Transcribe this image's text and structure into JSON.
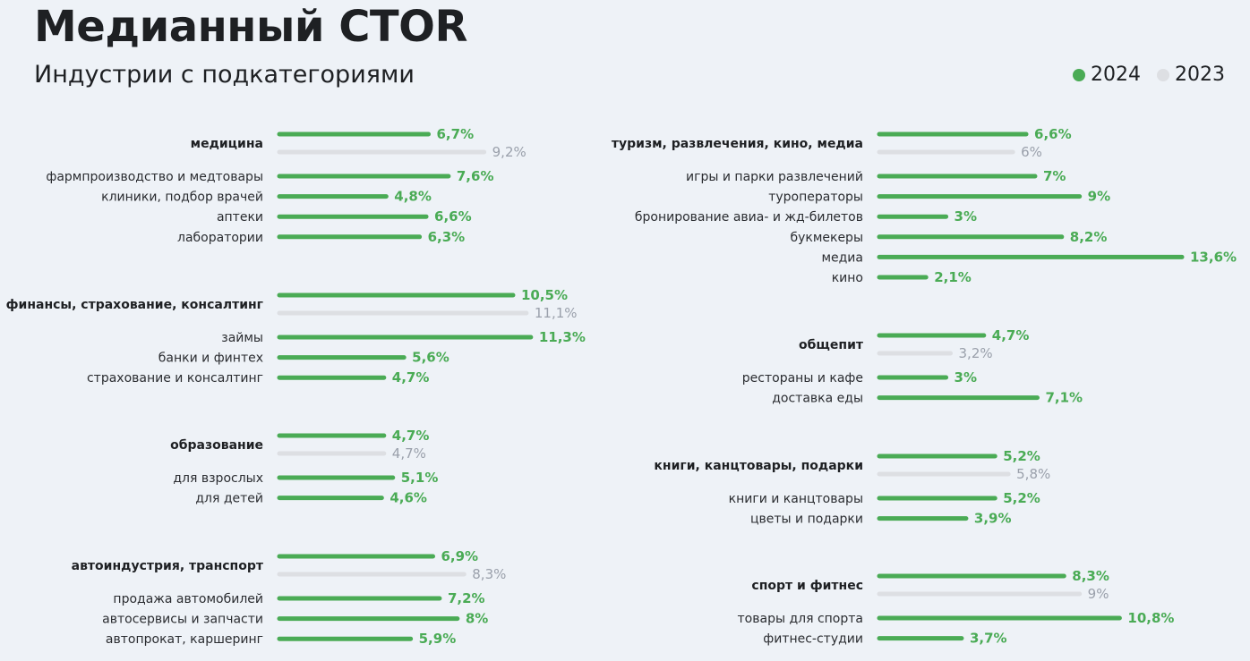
{
  "title": "Медианный CTOR",
  "subtitle": "Индустрии с подкатегориями",
  "colors": {
    "y2024": "#4aab55",
    "y2023": "#dddfe3",
    "y2023_text": "#9aa0ab",
    "text": "#1e2023",
    "background": "#eef2f7"
  },
  "legend": {
    "y2024": "2024",
    "y2023": "2023"
  },
  "chart_data": {
    "type": "bar",
    "orientation": "horizontal",
    "unit": "%",
    "xlim": [
      0,
      13.6
    ],
    "series_names": [
      "2024",
      "2023"
    ],
    "columns": [
      {
        "groups": [
          {
            "name": "медицина",
            "values": {
              "2024": 6.7,
              "2023": 9.2
            },
            "labels": {
              "2024": "6,7%",
              "2023": "9,2%"
            },
            "subcategories": [
              {
                "name": "фармпроизводство и медтовары",
                "value": 7.6,
                "label": "7,6%"
              },
              {
                "name": "клиники, подбор врачей",
                "value": 4.8,
                "label": "4,8%"
              },
              {
                "name": "аптеки",
                "value": 6.6,
                "label": "6,6%"
              },
              {
                "name": "лаборатории",
                "value": 6.3,
                "label": "6,3%"
              }
            ]
          },
          {
            "name": "финансы, страхование, консалтинг",
            "values": {
              "2024": 10.5,
              "2023": 11.1
            },
            "labels": {
              "2024": "10,5%",
              "2023": "11,1%"
            },
            "subcategories": [
              {
                "name": "займы",
                "value": 11.3,
                "label": "11,3%"
              },
              {
                "name": "банки и финтех",
                "value": 5.6,
                "label": "5,6%"
              },
              {
                "name": "страхование и консалтинг",
                "value": 4.7,
                "label": "4,7%"
              }
            ]
          },
          {
            "name": "образование",
            "values": {
              "2024": 4.7,
              "2023": 4.7
            },
            "labels": {
              "2024": "4,7%",
              "2023": "4,7%"
            },
            "subcategories": [
              {
                "name": "для взрослых",
                "value": 5.1,
                "label": "5,1%"
              },
              {
                "name": "для детей",
                "value": 4.6,
                "label": "4,6%"
              }
            ]
          },
          {
            "name": "автоиндустрия, транспорт",
            "values": {
              "2024": 6.9,
              "2023": 8.3
            },
            "labels": {
              "2024": "6,9%",
              "2023": "8,3%"
            },
            "subcategories": [
              {
                "name": "продажа автомобилей",
                "value": 7.2,
                "label": "7,2%"
              },
              {
                "name": "автосервисы и запчасти",
                "value": 8,
                "label": "8%"
              },
              {
                "name": "автопрокат, каршеринг",
                "value": 5.9,
                "label": "5,9%"
              }
            ]
          }
        ]
      },
      {
        "groups": [
          {
            "name": "туризм, развлечения, кино, медиа",
            "values": {
              "2024": 6.6,
              "2023": 6
            },
            "labels": {
              "2024": "6,6%",
              "2023": "6%"
            },
            "subcategories": [
              {
                "name": "игры и парки развлечений",
                "value": 7,
                "label": "7%"
              },
              {
                "name": "туроператоры",
                "value": 9,
                "label": "9%"
              },
              {
                "name": "бронирование авиа- и жд-билетов",
                "value": 3,
                "label": "3%"
              },
              {
                "name": "букмекеры",
                "value": 8.2,
                "label": "8,2%"
              },
              {
                "name": "медиа",
                "value": 13.6,
                "label": "13,6%"
              },
              {
                "name": "кино",
                "value": 2.1,
                "label": "2,1%"
              }
            ]
          },
          {
            "name": "общепит",
            "values": {
              "2024": 4.7,
              "2023": 3.2
            },
            "labels": {
              "2024": "4,7%",
              "2023": "3,2%"
            },
            "subcategories": [
              {
                "name": "рестораны и кафе",
                "value": 3,
                "label": "3%"
              },
              {
                "name": "доставка еды",
                "value": 7.1,
                "label": "7,1%"
              }
            ]
          },
          {
            "name": "книги, канцтовары, подарки",
            "values": {
              "2024": 5.2,
              "2023": 5.8
            },
            "labels": {
              "2024": "5,2%",
              "2023": "5,8%"
            },
            "subcategories": [
              {
                "name": "книги и канцтовары",
                "value": 5.2,
                "label": "5,2%"
              },
              {
                "name": "цветы и подарки",
                "value": 3.9,
                "label": "3,9%"
              }
            ]
          },
          {
            "name": "спорт и фитнес",
            "values": {
              "2024": 8.3,
              "2023": 9
            },
            "labels": {
              "2024": "8,3%",
              "2023": "9%"
            },
            "subcategories": [
              {
                "name": "товары для спорта",
                "value": 10.8,
                "label": "10,8%"
              },
              {
                "name": "фитнес-студии",
                "value": 3.7,
                "label": "3,7%"
              }
            ]
          }
        ]
      }
    ]
  }
}
